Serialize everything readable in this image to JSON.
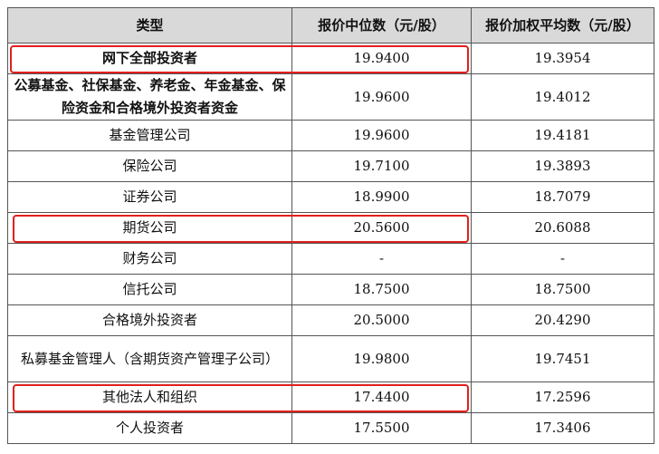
{
  "table": {
    "headers": [
      "类型",
      "报价中位数（元/股）",
      "报价加权平均数（元/股）"
    ],
    "rows": [
      [
        "网下全部投资者",
        "19.9400",
        "19.3954"
      ],
      [
        "公募基金、社保基金、养老金、年金基金、保险资金和合格境外投资者资金",
        "19.9600",
        "19.4012"
      ],
      [
        "基金管理公司",
        "19.9600",
        "19.4181"
      ],
      [
        "保险公司",
        "19.7100",
        "19.3893"
      ],
      [
        "证券公司",
        "18.9900",
        "18.7079"
      ],
      [
        "期货公司",
        "20.5600",
        "20.6088"
      ],
      [
        "财务公司",
        "-",
        "-"
      ],
      [
        "信托公司",
        "18.7500",
        "18.7500"
      ],
      [
        "合格境外投资者",
        "20.5000",
        "20.4290"
      ],
      [
        "私募基金管理人（含期货资产管理子公司）",
        "19.9800",
        "19.7451"
      ],
      [
        "其他法人和组织",
        "17.4400",
        "17.2596"
      ],
      [
        "个人投资者",
        "17.5500",
        "17.3406"
      ]
    ]
  }
}
